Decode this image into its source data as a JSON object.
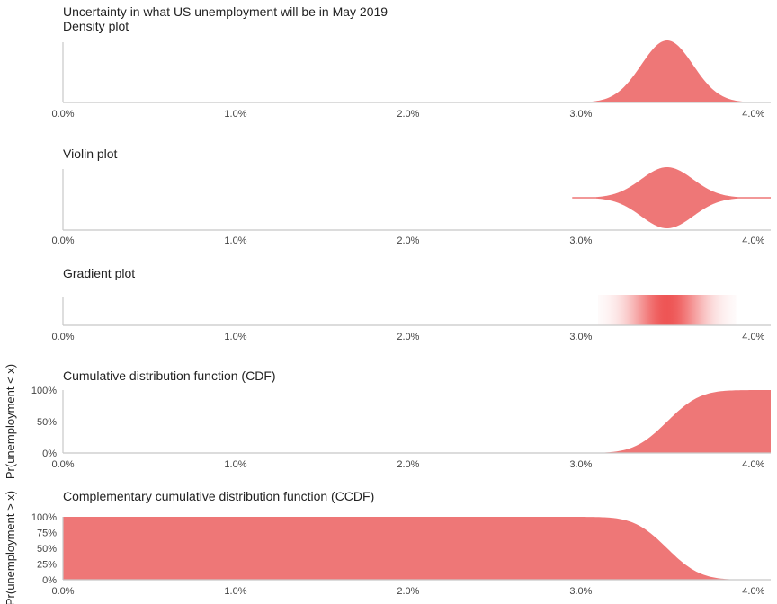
{
  "page_title": "Uncertainty in what US unemployment will be in May 2019",
  "chart_data": [
    {
      "type": "area",
      "subtype": "density",
      "title": "Density plot",
      "distribution": {
        "mean": 3.5,
        "sd": 0.15
      },
      "xlim": [
        0.0,
        4.1
      ],
      "x_ticks": [
        "0.0%",
        "1.0%",
        "2.0%",
        "3.0%",
        "4.0%"
      ],
      "x_tick_values": [
        0,
        1,
        2,
        3,
        4
      ],
      "color": "#ee7777"
    },
    {
      "type": "area",
      "subtype": "violin",
      "title": "Violin plot",
      "distribution": {
        "mean": 3.5,
        "sd": 0.15
      },
      "x_range": [
        2.95,
        4.1
      ],
      "xlim": [
        0.0,
        4.1
      ],
      "x_ticks": [
        "0.0%",
        "1.0%",
        "2.0%",
        "3.0%",
        "4.0%"
      ],
      "x_tick_values": [
        0,
        1,
        2,
        3,
        4
      ],
      "color": "#ee7777"
    },
    {
      "type": "heatmap",
      "subtype": "gradient",
      "title": "Gradient plot",
      "distribution": {
        "mean": 3.5,
        "sd": 0.15
      },
      "x_range": [
        3.1,
        3.9
      ],
      "xlim": [
        0.0,
        4.1
      ],
      "x_ticks": [
        "0.0%",
        "1.0%",
        "2.0%",
        "3.0%",
        "4.0%"
      ],
      "x_tick_values": [
        0,
        1,
        2,
        3,
        4
      ],
      "color": "#ee5555"
    },
    {
      "type": "area",
      "subtype": "cdf",
      "title": "Cumulative distribution function (CDF)",
      "ylabel": "Pr(unemployment < x)",
      "distribution": {
        "mean": 3.5,
        "sd": 0.15
      },
      "xlim": [
        0.0,
        4.1
      ],
      "ylim": [
        0,
        1
      ],
      "x_ticks": [
        "0.0%",
        "1.0%",
        "2.0%",
        "3.0%",
        "4.0%"
      ],
      "x_tick_values": [
        0,
        1,
        2,
        3,
        4
      ],
      "y_ticks": [
        "0%",
        "50%",
        "100%"
      ],
      "y_tick_values": [
        0,
        0.5,
        1
      ],
      "color": "#ee7777"
    },
    {
      "type": "area",
      "subtype": "ccdf",
      "title": "Complementary cumulative distribution function (CCDF)",
      "ylabel": "Pr(unemployment > x)",
      "distribution": {
        "mean": 3.5,
        "sd": 0.15
      },
      "xlim": [
        0.0,
        4.1
      ],
      "ylim": [
        0,
        1
      ],
      "x_ticks": [
        "0.0%",
        "1.0%",
        "2.0%",
        "3.0%",
        "4.0%"
      ],
      "x_tick_values": [
        0,
        1,
        2,
        3,
        4
      ],
      "y_ticks": [
        "0%",
        "25%",
        "50%",
        "75%",
        "100%"
      ],
      "y_tick_values": [
        0,
        0.25,
        0.5,
        0.75,
        1
      ],
      "color": "#ee7777"
    }
  ]
}
